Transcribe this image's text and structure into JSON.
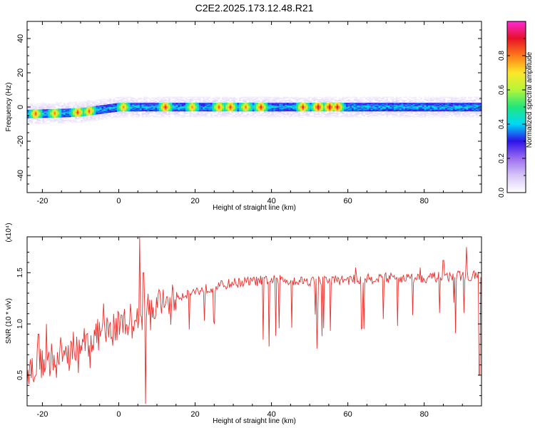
{
  "figure_title": "C2E2.2025.173.12.48.R21",
  "colors": {
    "signal_line": "#e8302c",
    "colormap": [
      "#ffffff",
      "#d6c4f7",
      "#9a6cf0",
      "#2c14e8",
      "#00d9f5",
      "#22e67a",
      "#b6f53a",
      "#ffe62a",
      "#ff7a1a",
      "#e6102a",
      "#ff2ad8"
    ]
  },
  "chart_data": [
    {
      "type": "heatmap",
      "title": "",
      "xlabel": "Height of straight line (km)",
      "ylabel": "Frequency (Hz)",
      "xlim": [
        -24,
        95
      ],
      "ylim": [
        -50,
        50
      ],
      "xticks": [
        -20,
        0,
        20,
        40,
        60,
        80
      ],
      "yticks": [
        -40,
        -20,
        0,
        20,
        40
      ],
      "band": {
        "center_line": [
          [
            -24,
            -4
          ],
          [
            -15,
            -3.5
          ],
          [
            -10,
            -3
          ],
          [
            -5,
            -1.5
          ],
          [
            0,
            0
          ],
          [
            5,
            0
          ],
          [
            10,
            0
          ],
          [
            20,
            0
          ],
          [
            40,
            0
          ],
          [
            60,
            0
          ],
          [
            80,
            0
          ],
          [
            94,
            0
          ]
        ],
        "halfwidth_core_hz": 2.5,
        "halfwidth_halo_hz": 6
      },
      "hotspots": [
        {
          "x": -22,
          "amp": 0.85
        },
        {
          "x": -17,
          "amp": 0.82
        },
        {
          "x": -11,
          "amp": 0.88
        },
        {
          "x": -8,
          "amp": 0.85
        },
        {
          "x": 1,
          "amp": 0.8
        },
        {
          "x": 12,
          "amp": 0.9
        },
        {
          "x": 19,
          "amp": 0.8
        },
        {
          "x": 26,
          "amp": 0.85
        },
        {
          "x": 29,
          "amp": 0.88
        },
        {
          "x": 33,
          "amp": 0.82
        },
        {
          "x": 37,
          "amp": 0.9
        },
        {
          "x": 48,
          "amp": 0.9
        },
        {
          "x": 52,
          "amp": 0.95
        },
        {
          "x": 55,
          "amp": 0.95
        },
        {
          "x": 57,
          "amp": 0.93
        }
      ],
      "colorbar": {
        "label": "Normalized spectral amplitude",
        "range": [
          0,
          1
        ],
        "ticks": [
          "0.0",
          "0.2",
          "0.4",
          "0.6",
          "0.8"
        ]
      }
    },
    {
      "type": "line",
      "title": "",
      "xlabel": "Height of straight line (km)",
      "ylabel": "SNR (10 * v/v)",
      "scale_label": "(x10⁴)",
      "xlim": [
        -24,
        95
      ],
      "ylim": [
        0.2,
        1.85
      ],
      "xticks": [
        -20,
        0,
        20,
        40,
        60,
        80
      ],
      "yticks": [
        "0.5",
        "1.0",
        "1.5"
      ],
      "series": [
        {
          "name": "",
          "trend": [
            [
              -24,
              0.55
            ],
            [
              -20,
              0.62
            ],
            [
              -15,
              0.72
            ],
            [
              -10,
              0.8
            ],
            [
              -5,
              0.9
            ],
            [
              0,
              1.0
            ],
            [
              3,
              1.05
            ],
            [
              5,
              1.05
            ],
            [
              8,
              1.15
            ],
            [
              12,
              1.22
            ],
            [
              18,
              1.3
            ],
            [
              25,
              1.36
            ],
            [
              30,
              1.4
            ],
            [
              40,
              1.43
            ],
            [
              50,
              1.42
            ],
            [
              60,
              1.43
            ],
            [
              70,
              1.45
            ],
            [
              80,
              1.45
            ],
            [
              90,
              1.47
            ],
            [
              94,
              1.47
            ]
          ],
          "spikes": [
            [
              -21,
              0.9
            ],
            [
              -19,
              1.0
            ],
            [
              -4,
              1.2
            ],
            [
              5.5,
              1.85
            ],
            [
              7,
              0.22
            ],
            [
              6.5,
              1.5
            ],
            [
              62,
              1.55
            ],
            [
              79,
              1.55
            ],
            [
              85,
              1.62
            ],
            [
              91,
              1.75
            ],
            [
              94.5,
              0.5
            ]
          ]
        }
      ]
    }
  ]
}
